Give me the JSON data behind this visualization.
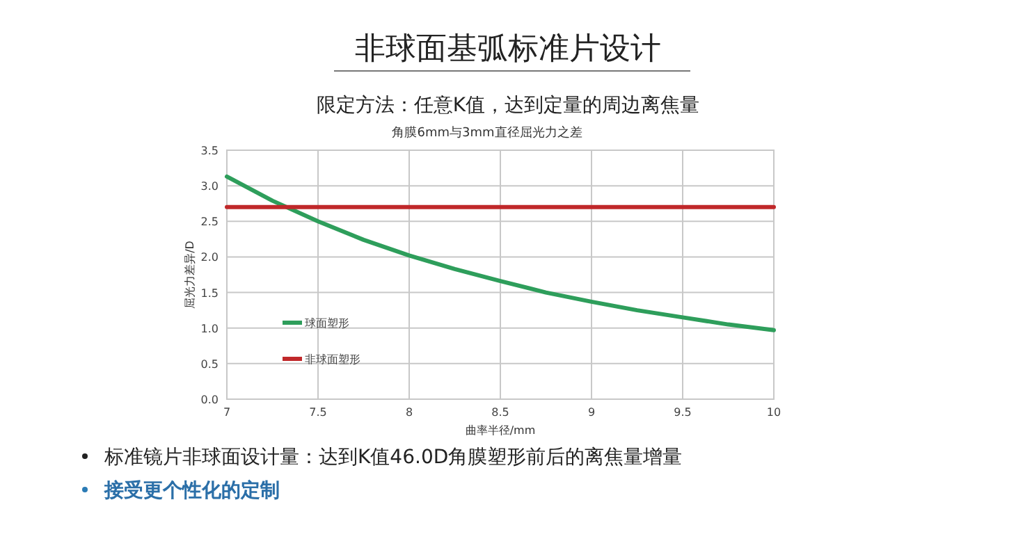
{
  "chart_data": {
    "type": "line",
    "title": "角膜6mm与3mm直径屈光力之差",
    "subtitle": "限定方法：任意K值，达到定量的周边离焦量",
    "xlabel": "曲率半径/mm",
    "ylabel": "屈光力差异/D",
    "annotations": [
      "非球面基弧标准片设计",
      "标准镜片非球面设计量：达到K值46.0D角膜塑形前后的离焦量增量",
      "接受更个性化的定制"
    ],
    "xlim": [
      7,
      10
    ],
    "xticks": [
      7,
      7.5,
      8,
      8.5,
      9,
      9.5,
      10
    ],
    "ylim": [
      0,
      3.5
    ],
    "yticks": [
      {
        "value": 0,
        "label": "0.0"
      },
      {
        "value": 0.5,
        "label": "0.5"
      },
      {
        "value": 1,
        "label": "1.0"
      },
      {
        "value": 1.5,
        "label": "1.5"
      },
      {
        "value": 2,
        "label": "2.0"
      },
      {
        "value": 2.5,
        "label": "2.5"
      },
      {
        "value": 3,
        "label": "3.0"
      },
      {
        "value": 3.5,
        "label": "3.5"
      }
    ],
    "grid": true,
    "legend": "left",
    "marker": "none",
    "line_style": "solid",
    "series": [
      {
        "name": "球面塑形",
        "color": "#2e9e5b",
        "x": [
          7,
          7.25,
          7.5,
          7.75,
          8,
          8.25,
          8.5,
          8.75,
          9,
          9.25,
          9.5,
          9.75,
          10
        ],
        "values": [
          3.13,
          2.79,
          2.5,
          2.24,
          2.02,
          1.83,
          1.66,
          1.5,
          1.37,
          1.25,
          1.15,
          1.05,
          0.97
        ]
      },
      {
        "name": "非球面塑形",
        "color": "#c0282a",
        "x": [
          7,
          10
        ],
        "values": [
          2.7,
          2.7
        ]
      }
    ]
  }
}
